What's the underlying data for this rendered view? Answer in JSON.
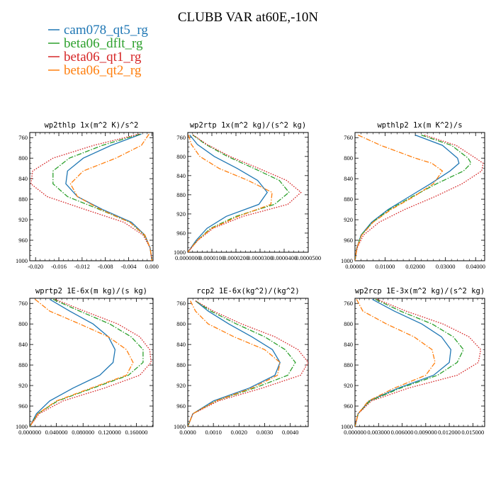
{
  "figure": {
    "title": "CLUBB VAR at60E,-10N"
  },
  "legend": [
    {
      "name": "cam078_qt5_rg",
      "color": "#1f77b4",
      "style": "solid"
    },
    {
      "name": "beta06_dflt_rg",
      "color": "#2ca02c",
      "style": "dashdot"
    },
    {
      "name": "beta06_qt1_rg",
      "color": "#d62728",
      "style": "dotted"
    },
    {
      "name": "beta06_qt2_rg",
      "color": "#ff7f0e",
      "style": "dashdot"
    }
  ],
  "chart_data": [
    {
      "type": "line",
      "title": "wp2thlp  1x(m^2 K)/s^2",
      "xlim": [
        -0.021,
        0.0002
      ],
      "ylim": [
        1000,
        750
      ],
      "xticks": [
        -0.02,
        -0.016,
        -0.012,
        -0.008,
        -0.004,
        0.0
      ],
      "xtick_labels": [
        "-0.020",
        "-0.016",
        "-0.012",
        "-0.008",
        "-0.004",
        "0.000"
      ],
      "yticks": [
        760,
        800,
        840,
        880,
        920,
        960,
        1000
      ],
      "ytick_labels": [
        "760",
        "800",
        "840",
        "880",
        "920",
        "960",
        "1000"
      ],
      "y": [
        753,
        775,
        800,
        825,
        850,
        875,
        900,
        925,
        950,
        975,
        1000
      ],
      "series": [
        {
          "name": "cam078_qt5_rg",
          "values": [
            -0.0018,
            -0.007,
            -0.0118,
            -0.0145,
            -0.0148,
            -0.0128,
            -0.0085,
            -0.0035,
            -0.0012,
            -0.0003,
            0.0
          ]
        },
        {
          "name": "beta06_dflt_rg",
          "values": [
            -0.002,
            -0.0085,
            -0.0142,
            -0.017,
            -0.017,
            -0.0145,
            -0.009,
            -0.0038,
            -0.0013,
            -0.0003,
            0.0
          ]
        },
        {
          "name": "beta06_qt1_rg",
          "values": [
            -0.0022,
            -0.01,
            -0.017,
            -0.0205,
            -0.0208,
            -0.018,
            -0.0115,
            -0.0048,
            -0.0015,
            -0.0003,
            0.0
          ]
        },
        {
          "name": "beta06_qt2_rg",
          "values": [
            -0.0005,
            -0.0018,
            -0.0062,
            -0.0118,
            -0.014,
            -0.0128,
            -0.0088,
            -0.0038,
            -0.0012,
            -0.0003,
            0.0
          ]
        }
      ]
    },
    {
      "type": "line",
      "title": "wp2rtp  1x(m^2 kg)/(s^2 kg)",
      "xlim": [
        0,
        5e-05
      ],
      "ylim": [
        1000,
        750
      ],
      "xticks": [
        0,
        1e-05,
        2e-05,
        3e-05,
        4e-05,
        5e-05
      ],
      "xtick_labels": [
        "0.0000000",
        "0.0000100",
        "0.0000200",
        "0.0000300",
        "0.0000400",
        "0.0000500"
      ],
      "yticks": [
        760,
        800,
        840,
        880,
        920,
        960,
        1000
      ],
      "ytick_labels": [
        "760",
        "800",
        "840",
        "880",
        "920",
        "960",
        "1000"
      ],
      "y": [
        755,
        775,
        800,
        825,
        850,
        875,
        900,
        925,
        950,
        975,
        1000
      ],
      "series": [
        {
          "name": "cam078_qt5_rg",
          "values": [
            8e-07,
            4e-06,
            1.1e-05,
            2.05e-05,
            2.9e-05,
            3.3e-05,
            2.95e-05,
            1.6e-05,
            8e-06,
            3.5e-06,
            0.0
          ]
        },
        {
          "name": "beta06_dflt_rg",
          "values": [
            2e-06,
            7.5e-06,
            1.65e-05,
            2.75e-05,
            3.8e-05,
            4.2e-05,
            3.6e-05,
            2e-05,
            9.5e-06,
            4e-06,
            0.0
          ]
        },
        {
          "name": "beta06_qt1_rg",
          "values": [
            2.2e-06,
            8e-06,
            1.75e-05,
            2.95e-05,
            4.1e-05,
            4.7e-05,
            4.15e-05,
            2.3e-05,
            1.05e-05,
            4.2e-06,
            0.0
          ]
        },
        {
          "name": "beta06_qt2_rg",
          "values": [
            3e-07,
            1.5e-06,
            5e-06,
            1.3e-05,
            2.5e-05,
            3.5e-05,
            3.45e-05,
            2.1e-05,
            1e-05,
            4e-06,
            0.0
          ]
        }
      ]
    },
    {
      "type": "line",
      "title": "wpthlp2  1x(m K^2)/s",
      "xlim": [
        0,
        0.043
      ],
      "ylim": [
        1000,
        750
      ],
      "xticks": [
        0,
        0.01,
        0.02,
        0.03,
        0.04
      ],
      "xtick_labels": [
        "0.00000",
        "0.01000",
        "0.02000",
        "0.03000",
        "0.04000"
      ],
      "yticks": [
        760,
        800,
        840,
        880,
        920,
        960,
        1000
      ],
      "ytick_labels": [
        "760",
        "800",
        "840",
        "880",
        "920",
        "960",
        "1000"
      ],
      "y": [
        755,
        775,
        800,
        810,
        825,
        850,
        875,
        900,
        925,
        950,
        975,
        1000
      ],
      "series": [
        {
          "name": "cam078_qt5_rg",
          "values": [
            0.02,
            0.029,
            0.034,
            0.0345,
            0.0315,
            0.025,
            0.018,
            0.011,
            0.0055,
            0.002,
            0.0006,
            0.0
          ]
        },
        {
          "name": "beta06_dflt_rg",
          "values": [
            0.022,
            0.032,
            0.0375,
            0.0385,
            0.036,
            0.027,
            0.019,
            0.0115,
            0.0058,
            0.0021,
            0.0006,
            0.0
          ]
        },
        {
          "name": "beta06_qt1_rg",
          "values": [
            0.023,
            0.0335,
            0.04,
            0.0425,
            0.042,
            0.0355,
            0.0265,
            0.0165,
            0.008,
            0.0028,
            0.0007,
            0.0
          ]
        },
        {
          "name": "beta06_qt2_rg",
          "values": [
            0.001,
            0.0085,
            0.02,
            0.0255,
            0.029,
            0.026,
            0.0195,
            0.012,
            0.006,
            0.0022,
            0.0006,
            0.0
          ]
        }
      ]
    },
    {
      "type": "line",
      "title": "wprtp2  1E-6x(m kg)/(s kg)",
      "xlim": [
        0,
        0.185
      ],
      "ylim": [
        1000,
        750
      ],
      "xticks": [
        0,
        0.04,
        0.08,
        0.12,
        0.16
      ],
      "xtick_labels": [
        "0.000000",
        "0.040000",
        "0.080000",
        "0.120000",
        "0.160000"
      ],
      "yticks": [
        760,
        800,
        840,
        880,
        920,
        960,
        1000
      ],
      "ytick_labels": [
        "760",
        "800",
        "840",
        "880",
        "920",
        "960",
        "1000"
      ],
      "y": [
        752,
        775,
        800,
        825,
        850,
        875,
        900,
        925,
        950,
        975,
        1000
      ],
      "series": [
        {
          "name": "cam078_qt5_rg",
          "values": [
            0.03,
            0.06,
            0.095,
            0.118,
            0.128,
            0.125,
            0.105,
            0.065,
            0.03,
            0.01,
            0.0
          ]
        },
        {
          "name": "beta06_dflt_rg",
          "values": [
            0.035,
            0.075,
            0.12,
            0.152,
            0.17,
            0.17,
            0.148,
            0.095,
            0.042,
            0.012,
            0.0
          ]
        },
        {
          "name": "beta06_qt1_rg",
          "values": [
            0.038,
            0.082,
            0.132,
            0.165,
            0.18,
            0.182,
            0.165,
            0.112,
            0.05,
            0.014,
            0.0
          ]
        },
        {
          "name": "beta06_qt2_rg",
          "values": [
            0.008,
            0.03,
            0.075,
            0.118,
            0.145,
            0.155,
            0.145,
            0.092,
            0.04,
            0.012,
            0.0
          ]
        }
      ]
    },
    {
      "type": "line",
      "title": "rcp2  1E-6x(kg^2)/(kg^2)",
      "xlim": [
        0,
        0.0047
      ],
      "ylim": [
        1000,
        750
      ],
      "xticks": [
        0,
        0.001,
        0.002,
        0.003,
        0.004
      ],
      "xtick_labels": [
        "0.0000",
        "0.0010",
        "0.0020",
        "0.0030",
        "0.0040"
      ],
      "yticks": [
        760,
        800,
        840,
        880,
        920,
        960,
        1000
      ],
      "ytick_labels": [
        "760",
        "800",
        "840",
        "880",
        "920",
        "960",
        "1000"
      ],
      "y": [
        755,
        775,
        800,
        825,
        850,
        875,
        900,
        925,
        950,
        975,
        1000
      ],
      "series": [
        {
          "name": "cam078_qt5_rg",
          "values": [
            0.0003,
            0.0008,
            0.0016,
            0.0025,
            0.0033,
            0.0036,
            0.0034,
            0.0024,
            0.001,
            0.0002,
            0.0
          ]
        },
        {
          "name": "beta06_dflt_rg",
          "values": [
            0.0003,
            0.0009,
            0.0019,
            0.003,
            0.0038,
            0.0042,
            0.0039,
            0.0026,
            0.0011,
            0.0002,
            0.0
          ]
        },
        {
          "name": "beta06_qt1_rg",
          "values": [
            0.0003,
            0.001,
            0.0021,
            0.0034,
            0.0043,
            0.0047,
            0.0044,
            0.0029,
            0.0012,
            0.0002,
            0.0
          ]
        },
        {
          "name": "beta06_qt2_rg",
          "values": [
            0.0001,
            0.0003,
            0.0008,
            0.0018,
            0.003,
            0.0036,
            0.0035,
            0.0025,
            0.0011,
            0.0002,
            0.0
          ]
        }
      ]
    },
    {
      "type": "line",
      "title": "wp2rcp  1E-3x(m^2 kg)/(s^2 kg)",
      "xlim": [
        0,
        0.0165
      ],
      "ylim": [
        1000,
        750
      ],
      "xticks": [
        0,
        0.003,
        0.006,
        0.009,
        0.012,
        0.015
      ],
      "xtick_labels": [
        "0.000000",
        "0.003000",
        "0.006000",
        "0.009000",
        "0.012000",
        "0.015000"
      ],
      "yticks": [
        760,
        800,
        840,
        880,
        920,
        960,
        1000
      ],
      "ytick_labels": [
        "760",
        "800",
        "840",
        "880",
        "920",
        "960",
        "1000"
      ],
      "y": [
        752,
        775,
        800,
        825,
        850,
        875,
        900,
        925,
        950,
        975,
        1000
      ],
      "series": [
        {
          "name": "cam078_qt5_rg",
          "values": [
            0.0022,
            0.005,
            0.0085,
            0.011,
            0.0122,
            0.012,
            0.01,
            0.0055,
            0.0018,
            0.0004,
            0.0
          ]
        },
        {
          "name": "beta06_dflt_rg",
          "values": [
            0.0026,
            0.0058,
            0.0098,
            0.0125,
            0.0138,
            0.013,
            0.0105,
            0.0058,
            0.0019,
            0.0004,
            0.0
          ]
        },
        {
          "name": "beta06_qt1_rg",
          "values": [
            0.0028,
            0.0065,
            0.0112,
            0.0145,
            0.016,
            0.0157,
            0.013,
            0.0068,
            0.0021,
            0.0004,
            0.0
          ]
        },
        {
          "name": "beta06_qt2_rg",
          "values": [
            0.0002,
            0.001,
            0.004,
            0.0075,
            0.0098,
            0.0102,
            0.009,
            0.005,
            0.0017,
            0.0004,
            0.0
          ]
        }
      ]
    }
  ]
}
